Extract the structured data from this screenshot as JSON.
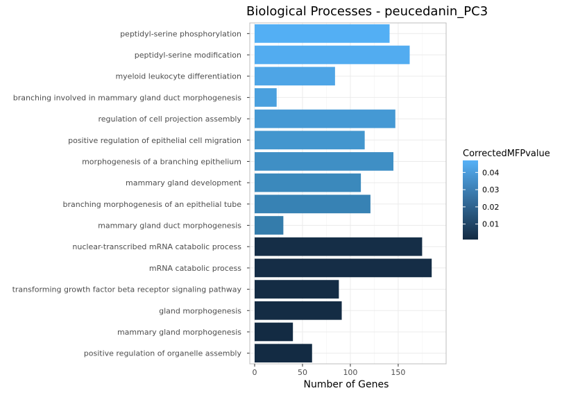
{
  "chart_data": {
    "type": "bar",
    "orientation": "horizontal",
    "title": "Biological Processes - peucedanin_PC3",
    "xlabel": "Number of Genes",
    "ylabel": "",
    "xlim": [
      0,
      195
    ],
    "x_ticks": [
      0,
      50,
      100,
      150
    ],
    "grid": true,
    "legend_position": "right",
    "legend": {
      "title": "CorrectedMFPvalue",
      "ticks": [
        0.01,
        0.02,
        0.03,
        0.04
      ],
      "tick_labels": [
        "0.01",
        "0.02",
        "0.03",
        "0.04"
      ],
      "range": [
        0.001,
        0.047
      ],
      "color_low": "#132b43",
      "color_high": "#56b1f7"
    },
    "categories": [
      "peptidyl-serine phosphorylation",
      "peptidyl-serine modification",
      "myeloid leukocyte differentiation",
      "branching involved in mammary gland duct morphogenesis",
      "regulation of cell projection assembly",
      "positive regulation of epithelial cell migration",
      "morphogenesis of a branching epithelium",
      "mammary gland development",
      "branching morphogenesis of an epithelial tube",
      "mammary gland duct morphogenesis",
      "nuclear-transcribed mRNA catabolic process",
      "mRNA catabolic process",
      "transforming growth factor beta receptor signaling pathway",
      "gland morphogenesis",
      "mammary gland morphogenesis",
      "positive regulation of organelle assembly"
    ],
    "values": [
      141,
      162,
      84,
      23,
      147,
      115,
      145,
      111,
      121,
      30,
      175,
      185,
      88,
      91,
      40,
      60
    ],
    "colors": [
      "#53aff4",
      "#52acf0",
      "#4ea5e6",
      "#4aa0de",
      "#4599d4",
      "#4396ce",
      "#3f8fc5",
      "#3b89bc",
      "#3782b4",
      "#347cab",
      "#152e47",
      "#152d46",
      "#142c44",
      "#142c44",
      "#132b43",
      "#132b43"
    ]
  }
}
